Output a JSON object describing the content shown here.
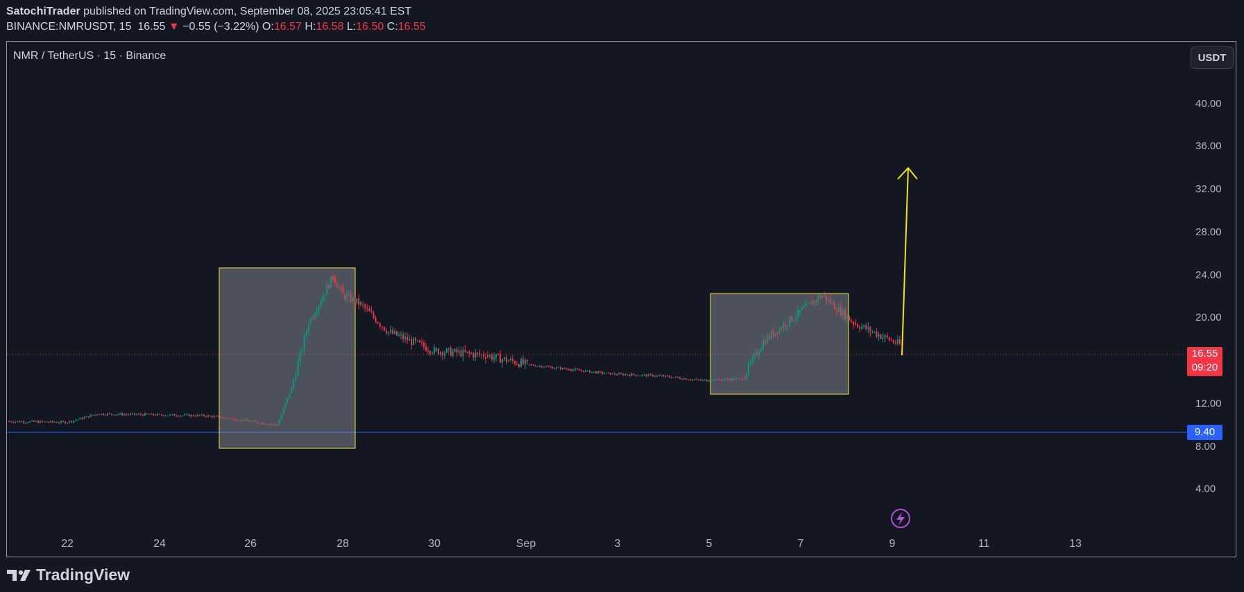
{
  "header": {
    "publisher": "SatochiTrader",
    "published_text": "published on TradingView.com, September 08, 2025 23:05:41 EST",
    "ticker": "BINANCE:NMRUSDT, 15",
    "last": "16.55",
    "change_arrow": "▼",
    "change": "−0.55 (−3.22%)",
    "o_label": "O:",
    "o_value": "16.57",
    "h_label": "H:",
    "h_value": "16.58",
    "l_label": "L:",
    "l_value": "16.50",
    "c_label": "C:",
    "c_value": "16.55"
  },
  "chart": {
    "symbol_title": "NMR / TetherUS · 15 · Binance",
    "currency_button": "USDT",
    "y_ticks": [
      "40.00",
      "36.00",
      "32.00",
      "28.00",
      "24.00",
      "20.00",
      "12.00",
      "8.00",
      "4.00"
    ],
    "x_ticks": [
      "22",
      "24",
      "26",
      "28",
      "30",
      "Sep",
      "3",
      "5",
      "7",
      "9",
      "11",
      "13"
    ],
    "price_badge": {
      "value": "16.55",
      "countdown": "09:20"
    },
    "line_badge": "9.40",
    "colors": {
      "up": "#089981",
      "down": "#f23645",
      "box_border": "#f7e33c",
      "arrow": "#f7e600",
      "hline": "#2962ff"
    }
  },
  "chart_data": {
    "type": "line",
    "title": "NMR / TetherUS · 15 · Binance",
    "x": [
      "Aug 21",
      "Aug 22",
      "Aug 23",
      "Aug 24",
      "Aug 25",
      "Aug 26",
      "Aug 26.6",
      "Aug 27",
      "Aug 27.5",
      "Aug 27.8",
      "Aug 28",
      "Aug 28.5",
      "Aug 29",
      "Aug 30",
      "Aug 31",
      "Sep 1",
      "Sep 2",
      "Sep 3",
      "Sep 4",
      "Sep 5",
      "Sep 6",
      "Sep 6.5",
      "Sep 7",
      "Sep 7.5",
      "Sep 8",
      "Sep 9"
    ],
    "series": [
      {
        "values": [
          8.4,
          8.3,
          9.2,
          9.1,
          9.0,
          8.5,
          8.0,
          12.0,
          19.0,
          24.0,
          22.0,
          21.0,
          18.0,
          16.0,
          15.5,
          14.5,
          14.0,
          13.5,
          13.3,
          12.8,
          13.0,
          17.0,
          20.0,
          22.0,
          19.0,
          16.55
        ]
      }
    ],
    "ylim": [
      0,
      44
    ],
    "horizontal_line": 9.4,
    "annotations": [
      {
        "type": "box",
        "x_range": [
          "Aug 25.3",
          "Aug 28.2"
        ],
        "y_range": [
          8.0,
          24.8
        ]
      },
      {
        "type": "box",
        "x_range": [
          "Sep 5",
          "Sep 8"
        ],
        "y_range": [
          12.8,
          22.4
        ]
      },
      {
        "type": "arrow",
        "from": [
          "Sep 9",
          16.55
        ],
        "to": [
          "Sep 9.3",
          34.5
        ]
      }
    ]
  },
  "footer": {
    "brand": "TradingView"
  }
}
